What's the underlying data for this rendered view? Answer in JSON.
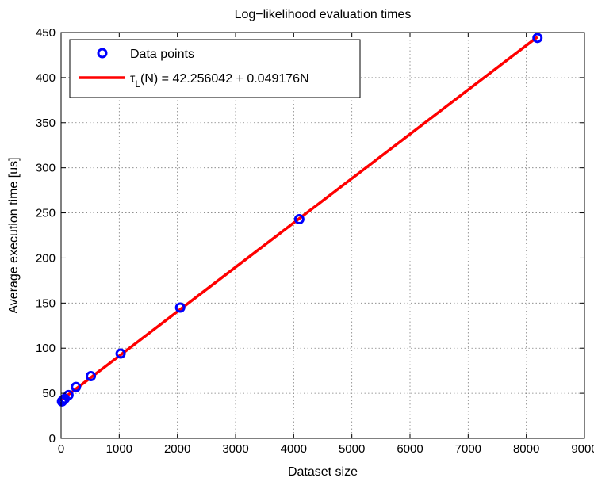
{
  "chart_data": {
    "type": "scatter",
    "title": "Log−likelihood evaluation times",
    "xlabel": "Dataset size",
    "ylabel": "Average execution time [us]",
    "xlim": [
      0,
      9000
    ],
    "ylim": [
      0,
      450
    ],
    "xticks": [
      0,
      1000,
      2000,
      3000,
      4000,
      5000,
      6000,
      7000,
      8000,
      9000
    ],
    "yticks": [
      0,
      50,
      100,
      150,
      200,
      250,
      300,
      350,
      400,
      450
    ],
    "grid": true,
    "legend_position": "top-left",
    "series": [
      {
        "name": "Data points",
        "kind": "markers",
        "marker": "circle",
        "color": "#0000ff",
        "x": [
          16,
          32,
          64,
          128,
          256,
          512,
          1024,
          2048,
          4096,
          8192
        ],
        "y": [
          41,
          42,
          44,
          48,
          57,
          69,
          94,
          145,
          243,
          444
        ]
      },
      {
        "name": "τ_L(N) = 42.256042 + 0.049176N",
        "legend_main": "τ",
        "legend_sub": "L",
        "legend_rest": "(N) = 42.256042 + 0.049176N",
        "kind": "line",
        "color": "#ff0000",
        "intercept": 42.256042,
        "slope": 0.049176,
        "x": [
          16,
          8192
        ]
      }
    ]
  }
}
